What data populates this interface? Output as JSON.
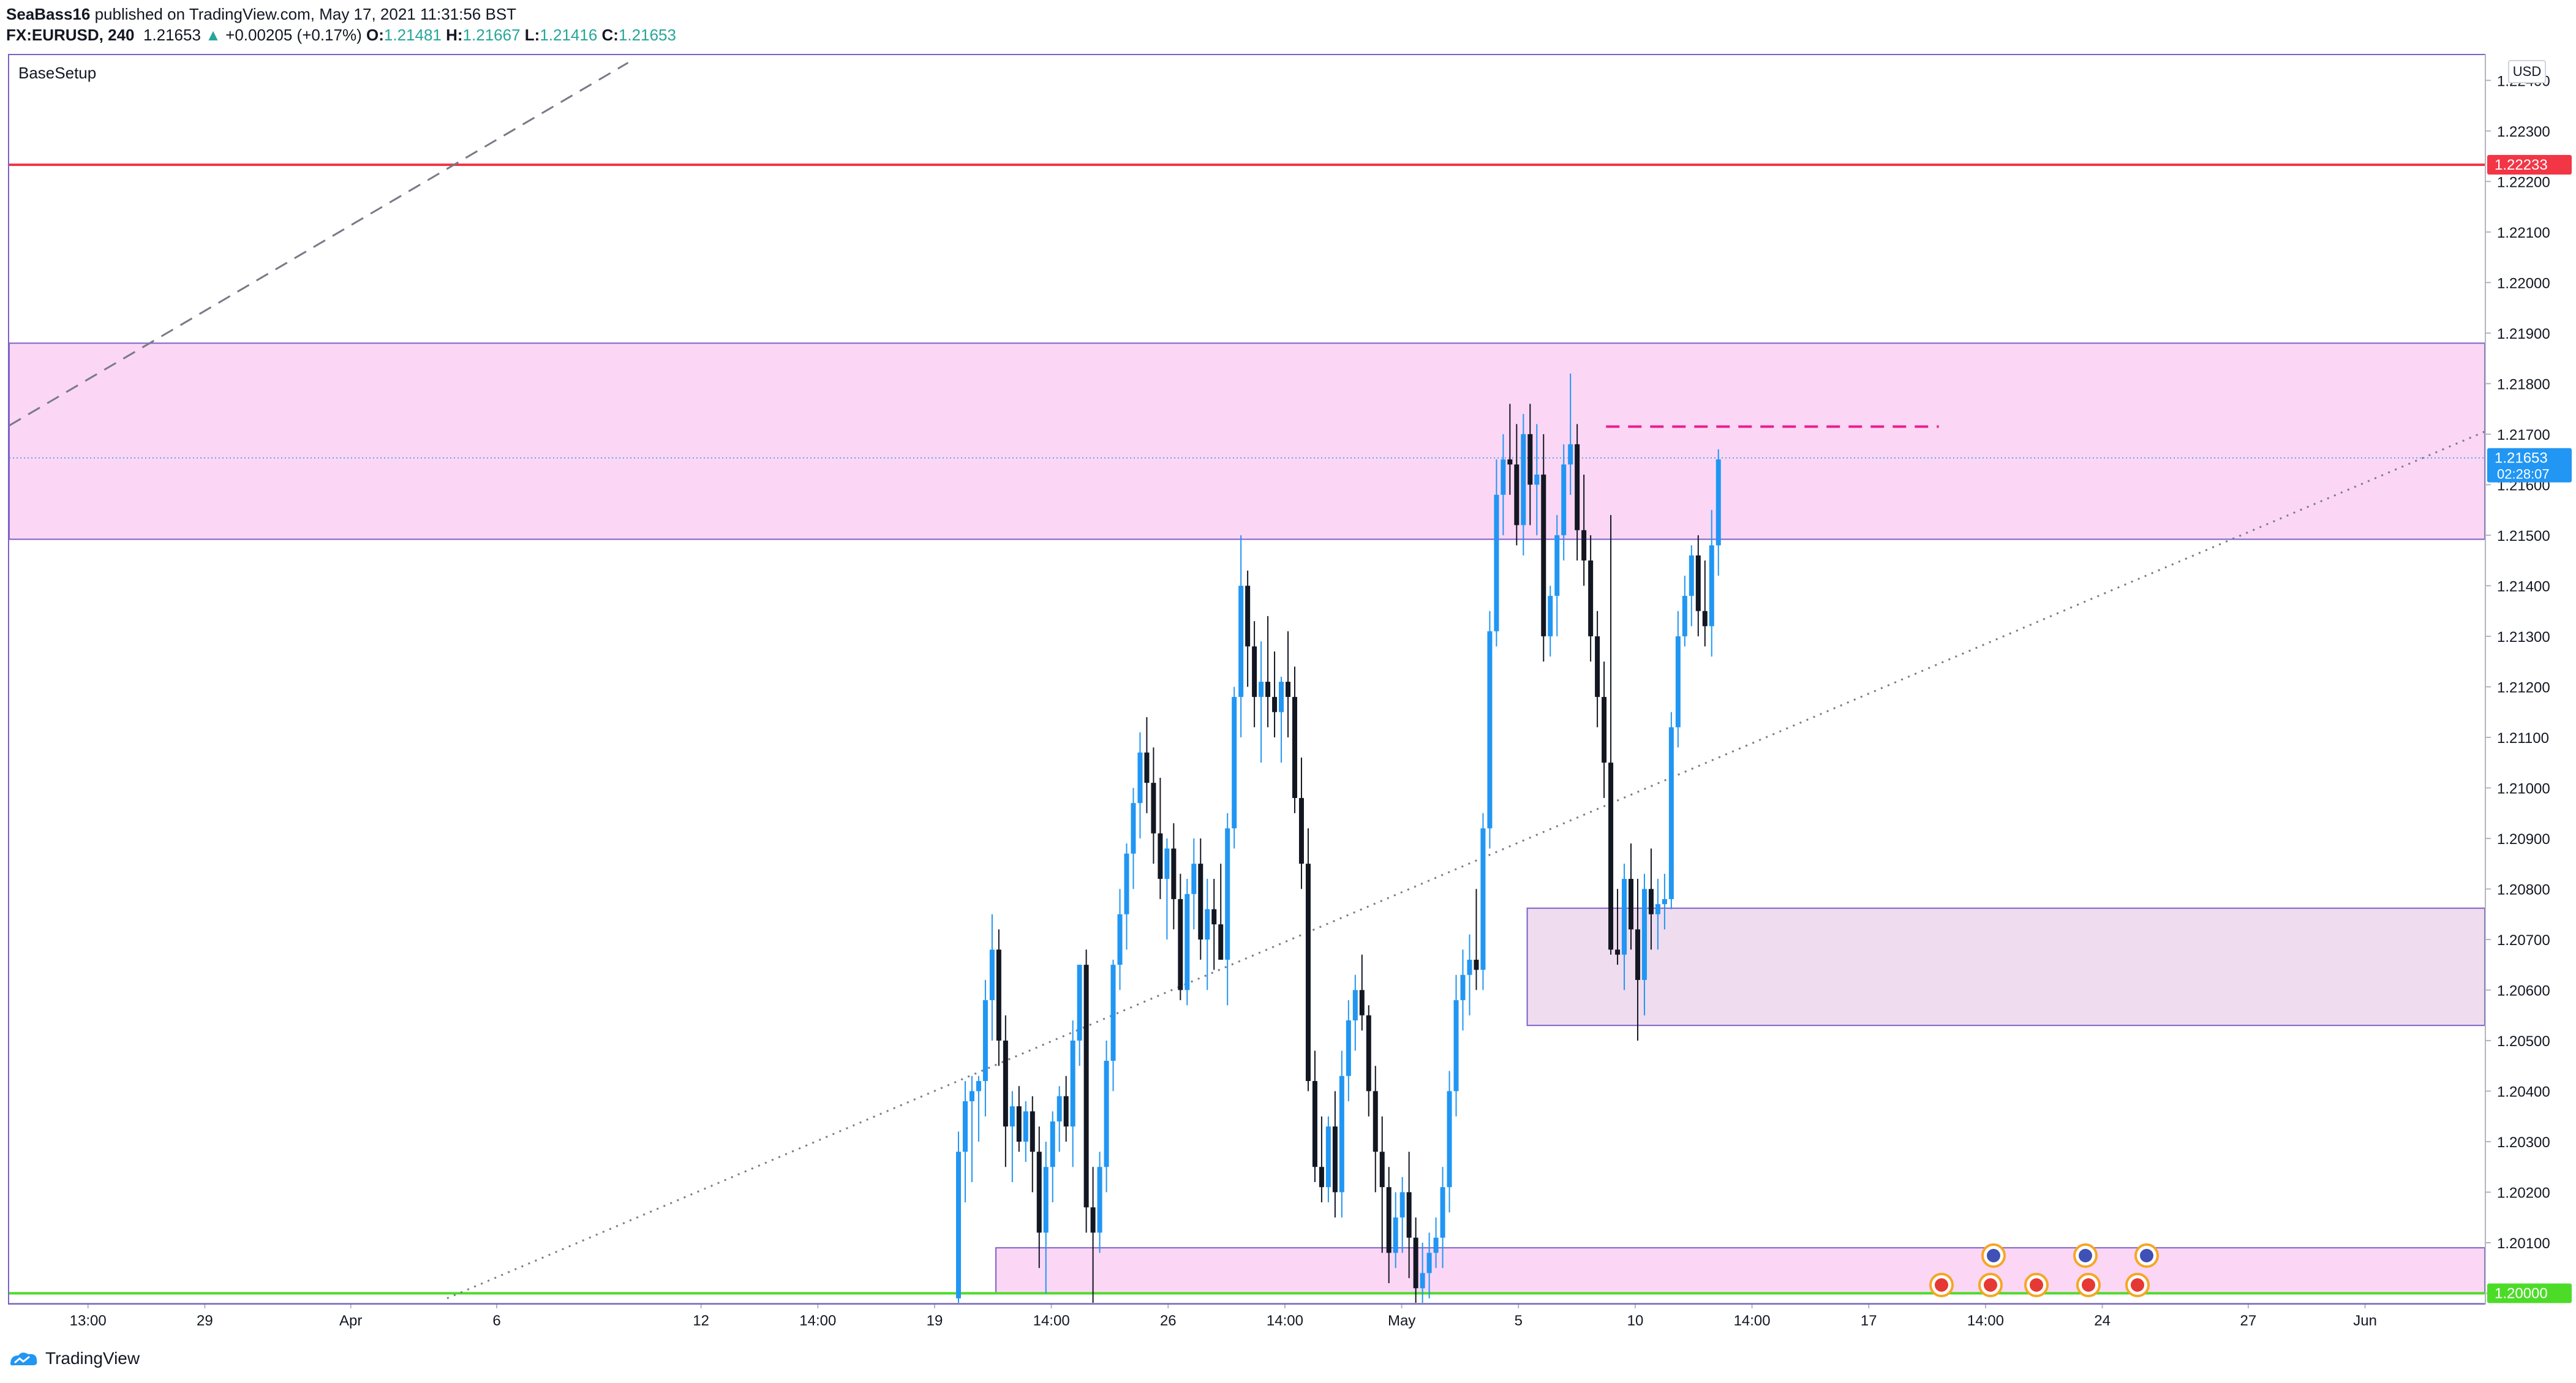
{
  "header": {
    "author": "SeaBass16",
    "published_text": " published on TradingView.com, May 17, 2021 11:31:56 BST",
    "symbol": "FX:EURUSD, 240",
    "last_price": "1.21653",
    "change_arrow": "▲",
    "change": "+0.00205 (+0.17%)",
    "o_label": "O:",
    "o_value": "1.21481",
    "h_label": "H:",
    "h_value": "1.21667",
    "l_label": "L:",
    "l_value": "1.21416",
    "c_label": "C:",
    "c_value": "1.21653"
  },
  "chart": {
    "indicator_label": "BaseSetup",
    "currency_label": "USD",
    "countdown": "02:28:07"
  },
  "footer": {
    "brand": "TradingView"
  },
  "colors": {
    "up": "#2196f3",
    "down": "#131722",
    "zone_fill": "#fbd7f5",
    "zone_fill_light": "#efdcef",
    "zone_border": "#7b61c9",
    "red_line": "#f23645",
    "green_line": "#4cdc28",
    "dashed_magenta": "#e91e8c"
  },
  "chart_data": {
    "type": "candlestick",
    "symbol": "EURUSD",
    "interval": "240",
    "y_ticks": [
      "1.22400",
      "1.22300",
      "1.22200",
      "1.22100",
      "1.22000",
      "1.21900",
      "1.21800",
      "1.21700",
      "1.21600",
      "1.21500",
      "1.21400",
      "1.21300",
      "1.21200",
      "1.21100",
      "1.21000",
      "1.20900",
      "1.20800",
      "1.20700",
      "1.20600",
      "1.20500",
      "1.20400",
      "1.20300",
      "1.20200",
      "1.20100",
      "1.20000"
    ],
    "ylim": [
      1.1998,
      1.2245
    ],
    "x_ticks": [
      {
        "label": "13:00",
        "x": -52
      },
      {
        "label": "29",
        "x": -48
      },
      {
        "label": "Apr",
        "x": -43
      },
      {
        "label": "6",
        "x": -38
      },
      {
        "label": "12",
        "x": -31
      },
      {
        "label": "14:00",
        "x": -27
      },
      {
        "label": "19",
        "x": -23
      },
      {
        "label": "14:00",
        "x": -19
      },
      {
        "label": "26",
        "x": -15
      },
      {
        "label": "14:00",
        "x": -11
      },
      {
        "label": "May",
        "x": -7
      },
      {
        "label": "5",
        "x": -3
      },
      {
        "label": "10",
        "x": 1
      },
      {
        "label": "14:00",
        "x": 5
      },
      {
        "label": "17",
        "x": 9
      },
      {
        "label": "14:00",
        "x": 13
      },
      {
        "label": "24",
        "x": 17
      },
      {
        "label": "27",
        "x": 22
      },
      {
        "label": "Jun",
        "x": 26
      }
    ],
    "xlim": [
      -54.7,
      30.1
    ],
    "price_labels": [
      {
        "value": 1.22233,
        "text": "1.22233",
        "color": "#f23645"
      },
      {
        "value": 1.21653,
        "text": "1.21653",
        "color": "#2196f3"
      },
      {
        "value": 1.2,
        "text": "1.20000",
        "color": "#4cdc28"
      }
    ],
    "horizontal_lines": [
      {
        "value": 1.22233,
        "color": "#f23645"
      },
      {
        "value": 1.2,
        "color": "#4cdc28"
      },
      {
        "value": 1.21653,
        "style": "dotted",
        "color": "#2196f3"
      }
    ],
    "zones": [
      {
        "x0": -54.7,
        "x1": 30.1,
        "y_top": 1.2188,
        "y_bottom": 1.21492
      },
      {
        "x0": -2.7,
        "x1": 30.1,
        "y_top": 1.20762,
        "y_bottom": 1.2053
      },
      {
        "x0": -20.9,
        "x1": 30.1,
        "y_top": 1.2009,
        "y_bottom": 1.2
      }
    ],
    "trendlines": [
      {
        "points": [
          [
            -54.7,
            1.21717
          ],
          [
            -33.5,
            1.22435
          ]
        ],
        "style": "dashed"
      },
      {
        "points": [
          [
            -39.7,
            1.1999
          ],
          [
            30.1,
            1.21705
          ]
        ],
        "style": "dotted"
      },
      {
        "points": [
          [
            0.0,
            1.21715
          ],
          [
            11.4,
            1.21715
          ]
        ],
        "style": "dashed-magenta"
      }
    ],
    "candles": [
      [
        1.1999,
        1.2032,
        1.1995,
        1.2028
      ],
      [
        1.2028,
        1.2042,
        1.2018,
        1.2038
      ],
      [
        1.2038,
        1.2043,
        1.2022,
        1.204
      ],
      [
        1.204,
        1.2043,
        1.203,
        1.2042
      ],
      [
        1.2042,
        1.2062,
        1.2035,
        1.2058
      ],
      [
        1.2058,
        1.2075,
        1.205,
        1.2068
      ],
      [
        1.2068,
        1.2072,
        1.2045,
        1.205
      ],
      [
        1.205,
        1.2055,
        1.2025,
        1.2033
      ],
      [
        1.2033,
        1.204,
        1.2022,
        1.2037
      ],
      [
        1.2037,
        1.2041,
        1.2028,
        1.203
      ],
      [
        1.203,
        1.2038,
        1.2026,
        1.2036
      ],
      [
        1.2036,
        1.2039,
        1.202,
        1.2028
      ],
      [
        1.2028,
        1.2033,
        1.2005,
        1.2012
      ],
      [
        1.2012,
        1.203,
        1.2,
        1.2025
      ],
      [
        1.2025,
        1.2036,
        1.2018,
        1.2034
      ],
      [
        1.2034,
        1.2041,
        1.2028,
        1.2039
      ],
      [
        1.2039,
        1.2043,
        1.203,
        1.2033
      ],
      [
        1.2033,
        1.2054,
        1.2025,
        1.205
      ],
      [
        1.205,
        1.2065,
        1.2045,
        1.2065
      ],
      [
        1.2065,
        1.2068,
        1.2012,
        1.2017
      ],
      [
        1.2017,
        1.2025,
        1.1998,
        1.2012
      ],
      [
        1.2012,
        1.2028,
        1.2008,
        1.2025
      ],
      [
        1.2025,
        1.205,
        1.202,
        1.2046
      ],
      [
        1.2046,
        1.2066,
        1.204,
        1.2065
      ],
      [
        1.2065,
        1.208,
        1.206,
        1.2075
      ],
      [
        1.2075,
        1.2089,
        1.2068,
        1.2087
      ],
      [
        1.2087,
        1.21,
        1.208,
        1.2097
      ],
      [
        1.2097,
        1.2111,
        1.209,
        1.2107
      ],
      [
        1.2107,
        1.2114,
        1.2095,
        1.2101
      ],
      [
        1.2101,
        1.2108,
        1.2085,
        1.2091
      ],
      [
        1.2091,
        1.2102,
        1.2078,
        1.2082
      ],
      [
        1.2082,
        1.209,
        1.207,
        1.2088
      ],
      [
        1.2088,
        1.2093,
        1.2072,
        1.2078
      ],
      [
        1.2078,
        1.2083,
        1.2058,
        1.206
      ],
      [
        1.206,
        1.2082,
        1.2057,
        1.2079
      ],
      [
        1.2079,
        1.209,
        1.2072,
        1.2085
      ],
      [
        1.2085,
        1.209,
        1.2066,
        1.207
      ],
      [
        1.207,
        1.2082,
        1.206,
        1.2076
      ],
      [
        1.2076,
        1.2082,
        1.2064,
        1.2073
      ],
      [
        1.2073,
        1.2085,
        1.2068,
        1.2066
      ],
      [
        1.2066,
        1.2095,
        1.2057,
        1.2092
      ],
      [
        1.2092,
        1.212,
        1.2088,
        1.2118
      ],
      [
        1.2118,
        1.215,
        1.211,
        1.214
      ],
      [
        1.214,
        1.2143,
        1.212,
        1.2128
      ],
      [
        1.2128,
        1.2133,
        1.2112,
        1.2118
      ],
      [
        1.2118,
        1.2129,
        1.2105,
        1.2121
      ],
      [
        1.2121,
        1.2134,
        1.2112,
        1.2118
      ],
      [
        1.2118,
        1.2127,
        1.211,
        1.2115
      ],
      [
        1.2115,
        1.2122,
        1.2105,
        1.2121
      ],
      [
        1.2121,
        1.2131,
        1.211,
        1.2118
      ],
      [
        1.2118,
        1.2124,
        1.2095,
        1.2098
      ],
      [
        1.2098,
        1.2106,
        1.208,
        1.2085
      ],
      [
        1.2085,
        1.2092,
        1.204,
        1.2042
      ],
      [
        1.2042,
        1.2048,
        1.2022,
        1.2025
      ],
      [
        1.2025,
        1.2035,
        1.2018,
        1.2021
      ],
      [
        1.2021,
        1.2035,
        1.2018,
        1.2033
      ],
      [
        1.2033,
        1.204,
        1.2015,
        1.202
      ],
      [
        1.202,
        1.2048,
        1.2015,
        1.2043
      ],
      [
        1.2043,
        1.2058,
        1.2038,
        1.2054
      ],
      [
        1.2054,
        1.2063,
        1.2048,
        1.206
      ],
      [
        1.206,
        1.2067,
        1.2052,
        1.2055
      ],
      [
        1.2055,
        1.2057,
        1.2035,
        1.204
      ],
      [
        1.204,
        1.2045,
        1.202,
        1.2028
      ],
      [
        1.2028,
        1.2035,
        1.2008,
        1.2021
      ],
      [
        1.2021,
        1.2025,
        1.2002,
        1.2008
      ],
      [
        1.2008,
        1.202,
        1.2005,
        1.2015
      ],
      [
        1.2015,
        1.2023,
        1.2008,
        1.202
      ],
      [
        1.202,
        1.2028,
        1.2003,
        1.2011
      ],
      [
        1.2011,
        1.2015,
        1.1996,
        1.2001
      ],
      [
        1.2001,
        1.201,
        1.1998,
        1.2004
      ],
      [
        1.2004,
        1.2012,
        1.1999,
        1.2008
      ],
      [
        1.2008,
        1.2015,
        1.2005,
        1.2011
      ],
      [
        1.2011,
        1.2025,
        1.2005,
        1.2021
      ],
      [
        1.2021,
        1.2044,
        1.2016,
        1.204
      ],
      [
        1.204,
        1.2063,
        1.2035,
        1.2058
      ],
      [
        1.2058,
        1.2068,
        1.2052,
        1.2063
      ],
      [
        1.2063,
        1.2071,
        1.2055,
        1.2066
      ],
      [
        1.2066,
        1.208,
        1.206,
        1.2064
      ],
      [
        1.2064,
        1.2095,
        1.206,
        1.2092
      ],
      [
        1.2092,
        1.2135,
        1.2088,
        1.2131
      ],
      [
        1.2131,
        1.2165,
        1.2128,
        1.2158
      ],
      [
        1.2158,
        1.217,
        1.215,
        1.2165
      ],
      [
        1.2165,
        1.2176,
        1.2158,
        1.2164
      ],
      [
        1.2164,
        1.2172,
        1.2148,
        1.2152
      ],
      [
        1.2152,
        1.2174,
        1.2146,
        1.217
      ],
      [
        1.217,
        1.2176,
        1.2152,
        1.216
      ],
      [
        1.216,
        1.2172,
        1.215,
        1.2162
      ],
      [
        1.2162,
        1.217,
        1.2125,
        1.213
      ],
      [
        1.213,
        1.214,
        1.2126,
        1.2138
      ],
      [
        1.2138,
        1.2154,
        1.213,
        1.215
      ],
      [
        1.215,
        1.2168,
        1.2145,
        1.2164
      ],
      [
        1.2164,
        1.2182,
        1.2158,
        1.2168
      ],
      [
        1.2168,
        1.2172,
        1.2145,
        1.2151
      ],
      [
        1.2151,
        1.2162,
        1.214,
        1.2145
      ],
      [
        1.2145,
        1.215,
        1.2125,
        1.213
      ],
      [
        1.213,
        1.2135,
        1.2112,
        1.2118
      ],
      [
        1.2118,
        1.2125,
        1.2098,
        1.2105
      ],
      [
        1.2105,
        1.2154,
        1.2067,
        1.2068
      ],
      [
        1.2068,
        1.208,
        1.2065,
        1.2067
      ],
      [
        1.2067,
        1.2085,
        1.206,
        1.2082
      ],
      [
        1.2082,
        1.2089,
        1.2068,
        1.2072
      ],
      [
        1.2072,
        1.2082,
        1.205,
        1.2062
      ],
      [
        1.2062,
        1.2083,
        1.2055,
        1.208
      ],
      [
        1.208,
        1.2088,
        1.2068,
        1.2075
      ],
      [
        1.2075,
        1.2082,
        1.2068,
        1.2077
      ],
      [
        1.2077,
        1.2083,
        1.2072,
        1.2078
      ],
      [
        1.2078,
        1.2115,
        1.2076,
        1.2112
      ],
      [
        1.2112,
        1.2135,
        1.2108,
        1.213
      ],
      [
        1.213,
        1.2142,
        1.2128,
        1.2138
      ],
      [
        1.2138,
        1.2148,
        1.2132,
        1.2146
      ],
      [
        1.2146,
        1.215,
        1.213,
        1.2135
      ],
      [
        1.2135,
        1.2145,
        1.2128,
        1.2132
      ],
      [
        1.2132,
        1.2155,
        1.2126,
        1.2148
      ],
      [
        1.2148,
        1.2167,
        1.2142,
        1.2165
      ]
    ]
  }
}
